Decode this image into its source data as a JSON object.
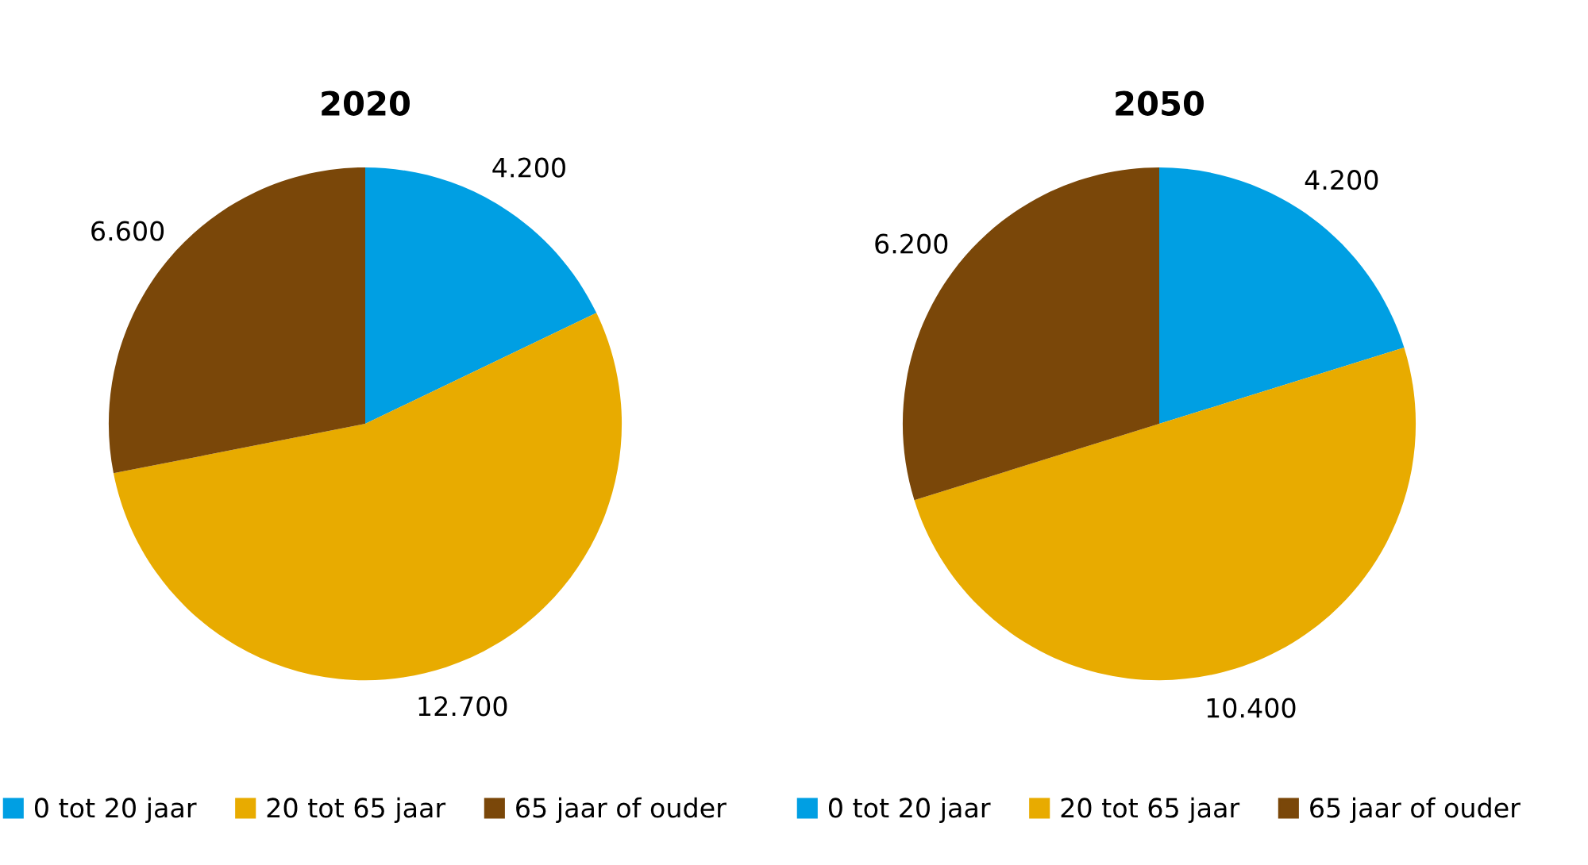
{
  "chart_data": [
    {
      "type": "pie",
      "title": "2020",
      "categories": [
        "0 tot 20 jaar",
        "20 tot 65 jaar",
        "65 jaar of ouder"
      ],
      "values": [
        4200,
        12700,
        6600
      ],
      "value_labels": [
        "4.200",
        "12.700",
        "6.600"
      ],
      "colors": [
        "#009fe3",
        "#e8ab00",
        "#7a4709"
      ],
      "legend": "bottom"
    },
    {
      "type": "pie",
      "title": "2050",
      "categories": [
        "0 tot 20 jaar",
        "20 tot 65 jaar",
        "65 jaar of ouder"
      ],
      "values": [
        4200,
        10400,
        6200
      ],
      "value_labels": [
        "4.200",
        "10.400",
        "6.200"
      ],
      "colors": [
        "#009fe3",
        "#e8ab00",
        "#7a4709"
      ],
      "legend": "bottom"
    }
  ]
}
